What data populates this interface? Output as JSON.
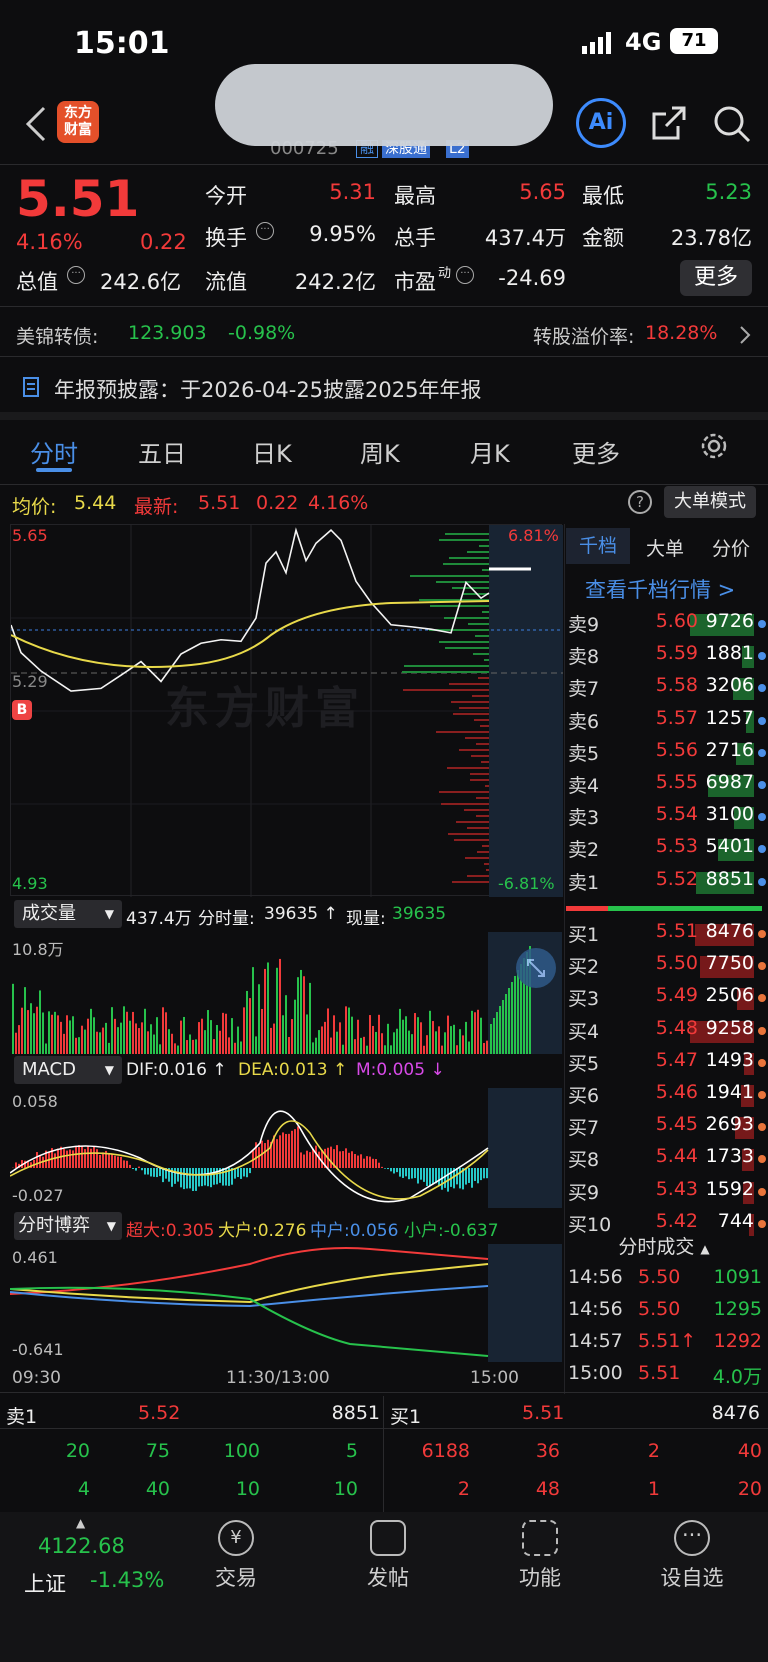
{
  "status": {
    "time": "15:01",
    "network": "4G",
    "battery": "71"
  },
  "nav": {
    "logo_line1": "东方",
    "logo_line2": "财富",
    "code_partial": "000725",
    "tag_margin": "融",
    "tag_connect": "深股通",
    "tag_l2": "L2",
    "ai_label": "Ai"
  },
  "quote": {
    "price": "5.51",
    "change_pct": "4.16%",
    "change": "0.22",
    "open_label": "今开",
    "open": "5.31",
    "high_label": "最高",
    "high": "5.65",
    "low_label": "最低",
    "low": "5.23",
    "turnover_label": "换手",
    "turnover": "9.95%",
    "volume_label": "总手",
    "volume": "437.4万",
    "amount_label": "金额",
    "amount": "23.78亿",
    "mktcap_label": "总值",
    "mktcap": "242.6亿",
    "float_label": "流值",
    "float": "242.2亿",
    "pe_label": "市盈",
    "pe_sup": "动",
    "pe": "-24.69",
    "more_label": "更多"
  },
  "bond": {
    "name": "美锦转债:",
    "price": "123.903",
    "pct": "-0.98%",
    "premium_label": "转股溢价率:",
    "premium": "18.28%"
  },
  "notice": "年报预披露：于2026-04-25披露2025年年报",
  "tabs": [
    "分时",
    "五日",
    "日K",
    "周K",
    "月K",
    "更多"
  ],
  "infobar": {
    "avg_label": "均价:",
    "avg": "5.44",
    "last_label": "最新:",
    "last": "5.51",
    "chg": "0.22",
    "pct": "4.16%",
    "big_order_mode": "大单模式"
  },
  "chart_labels": {
    "top_price": "5.65",
    "bottom_price": "4.93",
    "top_pct": "6.81%",
    "bottom_pct": "-6.81%",
    "mid_price": "5.29",
    "watermark": "东方财富",
    "b_marker": "B"
  },
  "volume_bar": {
    "selector": "成交量",
    "total": "437.4万",
    "tick_label": "分时量:",
    "tick": "39635 ↑",
    "now_label": "现量:",
    "now": "39635",
    "max": "10.8万"
  },
  "macd_bar": {
    "selector": "MACD",
    "dif": "DIF:0.016 ↑",
    "dea": "DEA:0.013 ↑",
    "m": "M:0.005 ↓",
    "top": "0.058",
    "bottom": "-0.027"
  },
  "game_bar": {
    "selector": "分时博弈",
    "super": "超大:0.305",
    "big": "大户:0.276",
    "mid": "中户:0.056",
    "small": "小户:-0.637",
    "top": "0.461",
    "bottom": "-0.641"
  },
  "time_axis": {
    "start": "09:30",
    "mid": "11:30/13:00",
    "end": "15:00"
  },
  "ob_tabs": [
    "千档",
    "大单",
    "分价"
  ],
  "ob_link": "查看千档行情 >",
  "asks": [
    {
      "label": "卖9",
      "price": "5.60",
      "qty": "9726"
    },
    {
      "label": "卖8",
      "price": "5.59",
      "qty": "1881"
    },
    {
      "label": "卖7",
      "price": "5.58",
      "qty": "3206"
    },
    {
      "label": "卖6",
      "price": "5.57",
      "qty": "1257"
    },
    {
      "label": "卖5",
      "price": "5.56",
      "qty": "2716"
    },
    {
      "label": "卖4",
      "price": "5.55",
      "qty": "6987"
    },
    {
      "label": "卖3",
      "price": "5.54",
      "qty": "3100"
    },
    {
      "label": "卖2",
      "price": "5.53",
      "qty": "5401"
    },
    {
      "label": "卖1",
      "price": "5.52",
      "qty": "8851"
    }
  ],
  "bids": [
    {
      "label": "买1",
      "price": "5.51",
      "qty": "8476"
    },
    {
      "label": "买2",
      "price": "5.50",
      "qty": "7750"
    },
    {
      "label": "买3",
      "price": "5.49",
      "qty": "2506"
    },
    {
      "label": "买4",
      "price": "5.48",
      "qty": "9258"
    },
    {
      "label": "买5",
      "price": "5.47",
      "qty": "1493"
    },
    {
      "label": "买6",
      "price": "5.46",
      "qty": "1941"
    },
    {
      "label": "买7",
      "price": "5.45",
      "qty": "2693"
    },
    {
      "label": "买8",
      "price": "5.44",
      "qty": "1733"
    },
    {
      "label": "买9",
      "price": "5.43",
      "qty": "1592"
    },
    {
      "label": "买10",
      "price": "5.42",
      "qty": "744"
    }
  ],
  "trades_title": "分时成交",
  "trades": [
    {
      "time": "14:56",
      "price": "5.50",
      "qty": "1091"
    },
    {
      "time": "14:56",
      "price": "5.50",
      "qty": "1295"
    },
    {
      "time": "14:57",
      "price": "5.51↑",
      "qty": "1292"
    },
    {
      "time": "15:00",
      "price": "5.51",
      "qty": "4.0万"
    }
  ],
  "queue": {
    "sell_label": "卖1",
    "sell_price": "5.52",
    "sell_qty": "8851",
    "buy_label": "买1",
    "buy_price": "5.51",
    "buy_qty": "8476",
    "sell_row1": [
      "20",
      "75",
      "100",
      "5"
    ],
    "sell_row2": [
      "4",
      "40",
      "10",
      "10"
    ],
    "buy_row1": [
      "6188",
      "36",
      "2",
      "40"
    ],
    "buy_row2": [
      "2",
      "48",
      "1",
      "20"
    ]
  },
  "bottom_nav": {
    "index_value": "4122.68",
    "index_name": "上证",
    "index_pct": "-1.43%",
    "trade": "交易",
    "post": "发帖",
    "func": "功能",
    "watch": "设自选"
  }
}
